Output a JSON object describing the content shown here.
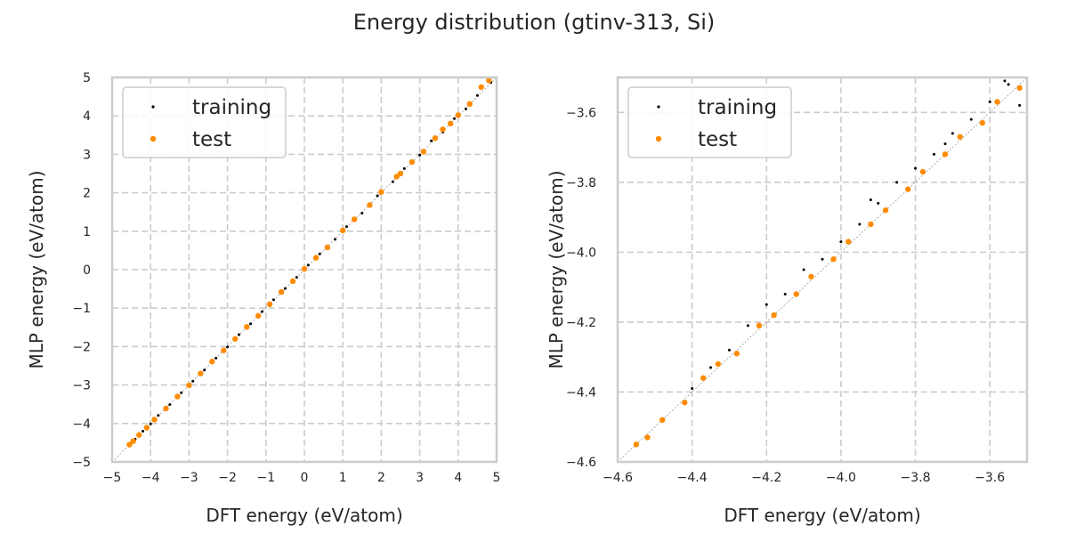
{
  "figure_title": "Energy distribution (gtinv-313, Si)",
  "colors": {
    "training": "#000000",
    "test": "#ff8c00",
    "grid": "#cccccc",
    "frame": "#cccccc",
    "diagonal": "#999999"
  },
  "chart_data": [
    {
      "type": "scatter",
      "xlabel": "DFT energy (eV/atom)",
      "ylabel": "MLP energy (eV/atom)",
      "xlim": [
        -5,
        5
      ],
      "ylim": [
        -5,
        5
      ],
      "xticks": [
        "−5",
        "−4",
        "−3",
        "−2",
        "−1",
        "0",
        "1",
        "2",
        "3",
        "4",
        "5"
      ],
      "yticks": [
        "−5",
        "−4",
        "−3",
        "−2",
        "−1",
        "0",
        "1",
        "2",
        "3",
        "4",
        "5"
      ],
      "tick_values": [
        -5,
        -4,
        -3,
        -2,
        -1,
        0,
        1,
        2,
        3,
        4,
        5
      ],
      "grid": true,
      "diagonal": true,
      "legend_position": "top-left",
      "series": [
        {
          "name": "training",
          "color": "#000000",
          "points": [
            [
              -4.55,
              -4.56
            ],
            [
              -4.4,
              -4.41
            ],
            [
              -4.2,
              -4.2
            ],
            [
              -4.0,
              -4.01
            ],
            [
              -3.8,
              -3.79
            ],
            [
              -3.5,
              -3.51
            ],
            [
              -3.2,
              -3.2
            ],
            [
              -2.9,
              -2.9
            ],
            [
              -2.6,
              -2.61
            ],
            [
              -2.3,
              -2.3
            ],
            [
              -2.0,
              -2.01
            ],
            [
              -1.7,
              -1.69
            ],
            [
              -1.4,
              -1.41
            ],
            [
              -1.1,
              -1.09
            ],
            [
              -0.8,
              -0.78
            ],
            [
              -0.5,
              -0.49
            ],
            [
              -0.2,
              -0.2
            ],
            [
              0.1,
              0.12
            ],
            [
              0.4,
              0.41
            ],
            [
              0.8,
              0.79
            ],
            [
              1.1,
              1.12
            ],
            [
              1.5,
              1.47
            ],
            [
              1.9,
              1.92
            ],
            [
              2.3,
              2.29
            ],
            [
              2.6,
              2.63
            ],
            [
              3.0,
              2.98
            ],
            [
              3.3,
              3.35
            ],
            [
              3.6,
              3.58
            ],
            [
              3.9,
              3.93
            ],
            [
              4.2,
              4.18
            ],
            [
              4.5,
              4.53
            ],
            [
              4.85,
              4.87
            ]
          ]
        },
        {
          "name": "test",
          "color": "#ff8c00",
          "points": [
            [
              -4.55,
              -4.55
            ],
            [
              -4.45,
              -4.46
            ],
            [
              -4.3,
              -4.3
            ],
            [
              -4.1,
              -4.11
            ],
            [
              -3.9,
              -3.9
            ],
            [
              -3.6,
              -3.61
            ],
            [
              -3.3,
              -3.3
            ],
            [
              -3.0,
              -3.01
            ],
            [
              -2.7,
              -2.7
            ],
            [
              -2.4,
              -2.39
            ],
            [
              -2.1,
              -2.1
            ],
            [
              -1.8,
              -1.8
            ],
            [
              -1.5,
              -1.49
            ],
            [
              -1.2,
              -1.2
            ],
            [
              -0.9,
              -0.9
            ],
            [
              -0.6,
              -0.58
            ],
            [
              -0.3,
              -0.3
            ],
            [
              0.0,
              0.02
            ],
            [
              0.3,
              0.31
            ],
            [
              0.6,
              0.58
            ],
            [
              1.0,
              1.02
            ],
            [
              1.3,
              1.31
            ],
            [
              1.7,
              1.68
            ],
            [
              2.0,
              2.02
            ],
            [
              2.4,
              2.42
            ],
            [
              2.5,
              2.5
            ],
            [
              2.8,
              2.8
            ],
            [
              3.1,
              3.07
            ],
            [
              3.4,
              3.42
            ],
            [
              3.6,
              3.65
            ],
            [
              3.8,
              3.8
            ],
            [
              4.0,
              4.02
            ],
            [
              4.3,
              4.31
            ],
            [
              4.6,
              4.75
            ],
            [
              4.8,
              4.92
            ]
          ]
        }
      ]
    },
    {
      "type": "scatter",
      "xlabel": "DFT energy (eV/atom)",
      "ylabel": "MLP energy (eV/atom)",
      "xlim": [
        -4.6,
        -3.5
      ],
      "ylim": [
        -4.6,
        -3.5
      ],
      "xticks": [
        "−4.6",
        "−4.4",
        "−4.2",
        "−4.0",
        "−3.8",
        "−3.6"
      ],
      "yticks": [
        "−4.6",
        "−4.4",
        "−4.2",
        "−4.0",
        "−3.8",
        "−3.6"
      ],
      "tick_values": [
        -4.6,
        -4.4,
        -4.2,
        -4.0,
        -3.8,
        -3.6
      ],
      "grid": true,
      "diagonal": true,
      "legend_position": "top-left",
      "series": [
        {
          "name": "training",
          "color": "#000000",
          "points": [
            [
              -4.4,
              -4.39
            ],
            [
              -4.35,
              -4.33
            ],
            [
              -4.3,
              -4.28
            ],
            [
              -4.25,
              -4.21
            ],
            [
              -4.2,
              -4.15
            ],
            [
              -4.15,
              -4.12
            ],
            [
              -4.1,
              -4.05
            ],
            [
              -4.05,
              -4.02
            ],
            [
              -4.0,
              -3.97
            ],
            [
              -3.95,
              -3.92
            ],
            [
              -3.92,
              -3.85
            ],
            [
              -3.9,
              -3.86
            ],
            [
              -3.85,
              -3.8
            ],
            [
              -3.8,
              -3.76
            ],
            [
              -3.75,
              -3.72
            ],
            [
              -3.72,
              -3.69
            ],
            [
              -3.7,
              -3.66
            ],
            [
              -3.65,
              -3.62
            ],
            [
              -3.6,
              -3.57
            ],
            [
              -3.55,
              -3.52
            ],
            [
              -3.52,
              -3.58
            ],
            [
              -3.56,
              -3.51
            ]
          ]
        },
        {
          "name": "test",
          "color": "#ff8c00",
          "points": [
            [
              -4.55,
              -4.55
            ],
            [
              -4.52,
              -4.53
            ],
            [
              -4.48,
              -4.48
            ],
            [
              -4.42,
              -4.43
            ],
            [
              -4.37,
              -4.36
            ],
            [
              -4.33,
              -4.32
            ],
            [
              -4.28,
              -4.29
            ],
            [
              -4.22,
              -4.21
            ],
            [
              -4.18,
              -4.18
            ],
            [
              -4.12,
              -4.12
            ],
            [
              -4.08,
              -4.07
            ],
            [
              -4.02,
              -4.02
            ],
            [
              -3.98,
              -3.97
            ],
            [
              -3.92,
              -3.92
            ],
            [
              -3.88,
              -3.88
            ],
            [
              -3.82,
              -3.82
            ],
            [
              -3.78,
              -3.77
            ],
            [
              -3.72,
              -3.72
            ],
            [
              -3.68,
              -3.67
            ],
            [
              -3.62,
              -3.63
            ],
            [
              -3.58,
              -3.57
            ],
            [
              -3.52,
              -3.53
            ]
          ]
        }
      ]
    }
  ]
}
